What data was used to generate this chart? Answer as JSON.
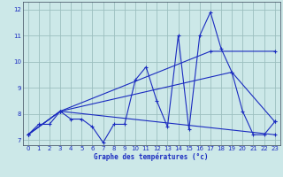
{
  "xlabel": "Graphe des températures (°c)",
  "xlim": [
    -0.5,
    23.5
  ],
  "ylim": [
    6.8,
    12.3
  ],
  "yticks": [
    7,
    8,
    9,
    10,
    11,
    12
  ],
  "xticks": [
    0,
    1,
    2,
    3,
    4,
    5,
    6,
    7,
    8,
    9,
    10,
    11,
    12,
    13,
    14,
    15,
    16,
    17,
    18,
    19,
    20,
    21,
    22,
    23
  ],
  "bg_color": "#cce8e8",
  "grid_color": "#9bbfbf",
  "line_color": "#1a2bc0",
  "line1_x": [
    0,
    1,
    2,
    3,
    4,
    5,
    6,
    7,
    8,
    9,
    10,
    11,
    12,
    13,
    14,
    15,
    16,
    17,
    18,
    19,
    20,
    21,
    22,
    23
  ],
  "line1_y": [
    7.2,
    7.6,
    7.6,
    8.1,
    7.8,
    7.8,
    7.5,
    6.9,
    7.6,
    7.6,
    9.3,
    9.8,
    8.5,
    7.5,
    11.0,
    7.4,
    11.0,
    11.9,
    10.5,
    9.6,
    8.1,
    7.2,
    7.2,
    7.7
  ],
  "line2_x": [
    0,
    3,
    23
  ],
  "line2_y": [
    7.2,
    8.1,
    7.2
  ],
  "line3_x": [
    0,
    3,
    17,
    23
  ],
  "line3_y": [
    7.2,
    8.1,
    10.4,
    10.4
  ],
  "line4_x": [
    0,
    3,
    19,
    23
  ],
  "line4_y": [
    7.2,
    8.1,
    9.6,
    7.7
  ]
}
